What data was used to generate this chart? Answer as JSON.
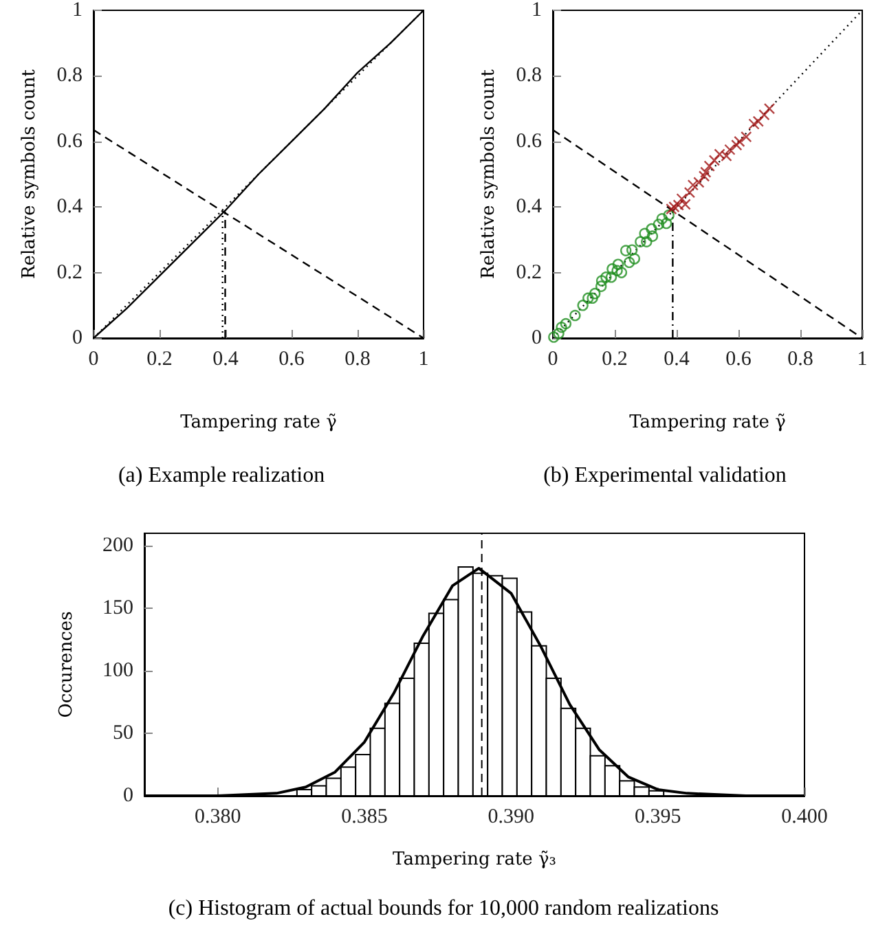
{
  "chart_data": [
    {
      "type": "line",
      "title": "(a) Example realization",
      "xlabel": "Tampering rate γ̃",
      "ylabel": "Relative symbols count",
      "xlim": [
        0,
        1
      ],
      "ylim": [
        0,
        1
      ],
      "xticks": [
        0,
        0.2,
        0.4,
        0.6,
        0.8,
        1
      ],
      "yticks": [
        0,
        0.2,
        0.4,
        0.6,
        0.8,
        1
      ],
      "series": [
        {
          "color": "#000000",
          "line_style": "solid",
          "x": [
            0,
            0.1,
            0.2,
            0.3,
            0.4,
            0.5,
            0.6,
            0.7,
            0.8,
            0.9,
            1
          ],
          "values": [
            0,
            0.09,
            0.19,
            0.29,
            0.39,
            0.5,
            0.6,
            0.7,
            0.81,
            0.9,
            1
          ]
        },
        {
          "color": "#000000",
          "line_style": "dotted",
          "x": [
            0,
            1
          ],
          "values": [
            0,
            1
          ]
        },
        {
          "color": "#000000",
          "line_style": "dashed",
          "x": [
            0,
            1
          ],
          "values": [
            0.635,
            0
          ]
        },
        {
          "color": "#000000",
          "line_style": "dotted",
          "x": [
            0.391,
            0.391
          ],
          "values": [
            0,
            0.385
          ]
        },
        {
          "color": "#000000",
          "line_style": "dashed",
          "x": [
            0.399,
            0.399
          ],
          "values": [
            0,
            0.385
          ]
        }
      ]
    },
    {
      "type": "scatter",
      "title": "(b) Experimental validation",
      "xlabel": "Tampering rate γ̃",
      "ylabel": "Relative symbols count",
      "xlim": [
        0,
        1
      ],
      "ylim": [
        0,
        1
      ],
      "xticks": [
        0,
        0.2,
        0.4,
        0.6,
        0.8,
        1
      ],
      "yticks": [
        0,
        0.2,
        0.4,
        0.6,
        0.8,
        1
      ],
      "series": [
        {
          "type": "line",
          "color": "#000000",
          "line_style": "dotted",
          "x": [
            0,
            1
          ],
          "values": [
            0,
            1
          ]
        },
        {
          "type": "line",
          "color": "#000000",
          "line_style": "dashed",
          "x": [
            0,
            1
          ],
          "values": [
            0.635,
            0
          ]
        },
        {
          "type": "line",
          "color": "#000000",
          "line_style": "dashdot",
          "x": [
            0.3875,
            0.3875
          ],
          "values": [
            0,
            0.39
          ]
        },
        {
          "color": "#1f8f1f",
          "marker": "circle",
          "x": [
            0.003,
            0.019,
            0.028,
            0.042,
            0.072,
            0.097,
            0.114,
            0.128,
            0.136,
            0.156,
            0.158,
            0.172,
            0.189,
            0.192,
            0.208,
            0.211,
            0.222,
            0.236,
            0.247,
            0.256,
            0.264,
            0.283,
            0.297,
            0.303,
            0.319,
            0.322,
            0.342,
            0.353,
            0.367,
            0.375
          ],
          "values": [
            0.003,
            0.014,
            0.033,
            0.044,
            0.069,
            0.1,
            0.122,
            0.122,
            0.136,
            0.158,
            0.175,
            0.186,
            0.186,
            0.211,
            0.206,
            0.225,
            0.2,
            0.267,
            0.231,
            0.269,
            0.242,
            0.294,
            0.319,
            0.294,
            0.333,
            0.311,
            0.347,
            0.364,
            0.35,
            0.375
          ]
        },
        {
          "color": "#a01414",
          "marker": "cross",
          "x": [
            0.383,
            0.392,
            0.406,
            0.417,
            0.428,
            0.442,
            0.453,
            0.472,
            0.489,
            0.494,
            0.506,
            0.522,
            0.539,
            0.561,
            0.572,
            0.594,
            0.603,
            0.625,
            0.65,
            0.664,
            0.683,
            0.7
          ],
          "values": [
            0.394,
            0.4,
            0.406,
            0.425,
            0.408,
            0.444,
            0.467,
            0.475,
            0.494,
            0.506,
            0.525,
            0.542,
            0.561,
            0.556,
            0.575,
            0.589,
            0.6,
            0.614,
            0.653,
            0.661,
            0.681,
            0.7
          ]
        }
      ]
    },
    {
      "type": "histogram",
      "title": "(c) Histogram of actual bounds for 10,000 random realizations",
      "xlabel": "Tampering rate γ̃₃",
      "ylabel": "Occurences",
      "xlim": [
        0.3775,
        0.4
      ],
      "ylim": [
        0,
        210
      ],
      "xticks": [
        {
          "value": 0.38,
          "label": "0.380"
        },
        {
          "value": 0.385,
          "label": "0.385"
        },
        {
          "value": 0.39,
          "label": "0.390"
        },
        {
          "value": 0.395,
          "label": "0.395"
        },
        {
          "value": 0.4,
          "label": "0.400"
        }
      ],
      "yticks": [
        0,
        50,
        100,
        150,
        200
      ],
      "ref_lines": [
        {
          "axis": "x",
          "value": 0.389,
          "color": "#000000",
          "line_style": "dashed"
        }
      ],
      "series": [
        {
          "color": "#000000",
          "bins": [
            0.3827,
            0.3832,
            0.3837,
            0.3842,
            0.3847,
            0.3852,
            0.3857,
            0.3862,
            0.3867,
            0.3872,
            0.3877,
            0.3882,
            0.3887,
            0.3892,
            0.3897,
            0.3902,
            0.3907,
            0.3912,
            0.3917,
            0.3922,
            0.3927,
            0.3932,
            0.3937,
            0.3942,
            0.3947,
            0.3952
          ],
          "values": [
            5,
            8,
            14,
            23,
            33,
            54,
            74,
            94,
            122,
            146,
            157,
            183,
            178,
            176,
            174,
            147,
            120,
            94,
            70,
            54,
            32,
            24,
            12,
            7,
            4
          ]
        },
        {
          "type": "line",
          "color": "#000000",
          "line_style": "solid",
          "x": [
            0.3775,
            0.38,
            0.382,
            0.383,
            0.384,
            0.385,
            0.386,
            0.387,
            0.388,
            0.3889,
            0.39,
            0.391,
            0.392,
            0.393,
            0.394,
            0.395,
            0.396,
            0.398,
            0.4
          ],
          "values": [
            0,
            0,
            2,
            7,
            19,
            43,
            82,
            128,
            168,
            182,
            162,
            120,
            73,
            37,
            15,
            5,
            2,
            0,
            0
          ]
        }
      ]
    }
  ]
}
